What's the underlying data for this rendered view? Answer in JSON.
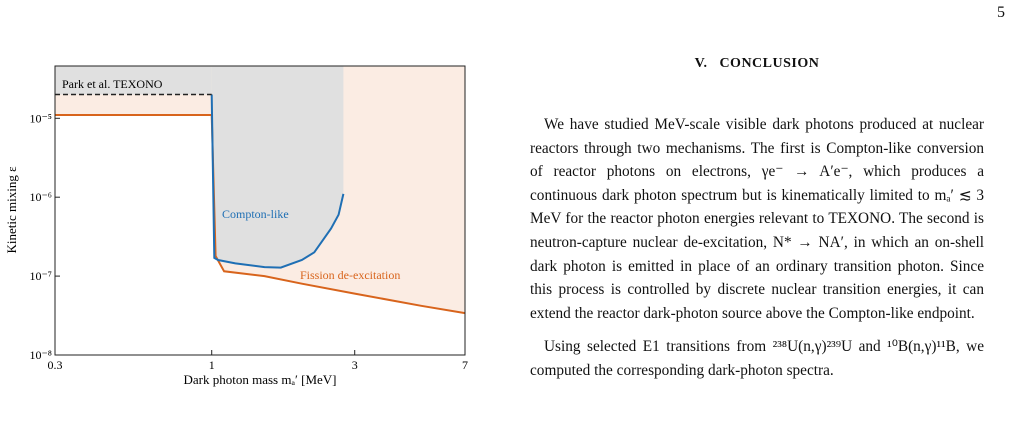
{
  "page_number": "5",
  "chart_data": {
    "type": "line",
    "xlabel": "Dark photon mass mₐ′ [MeV]",
    "ylabel": "Kinetic mixing ε",
    "log_x": true,
    "log_y": true,
    "xlim": [
      0.3,
      7
    ],
    "xticks": [
      0.3,
      1,
      3,
      7
    ],
    "ylim": [
      1e-08,
      4.6e-05
    ],
    "yticks": [
      {
        "value": 1e-08,
        "label": "10⁻⁸"
      },
      {
        "value": 1e-07,
        "label": "10⁻⁷"
      },
      {
        "value": 1e-06,
        "label": "10⁻⁶"
      },
      {
        "value": 1e-05,
        "label": "10⁻⁵"
      }
    ],
    "series": [
      {
        "name": "Fission de-excitation",
        "color": "#d8641c",
        "fill": "#fbece3",
        "x": [
          0.3,
          1.0,
          1.03,
          1.1,
          1.5,
          2,
          3,
          5,
          7
        ],
        "values": [
          1.1e-05,
          1.1e-05,
          1.8e-07,
          1.15e-07,
          1e-07,
          8e-08,
          6e-08,
          4.2e-08,
          3.4e-08
        ]
      },
      {
        "name": "Compton-like",
        "color": "#1f6fb4",
        "fill": "#e0e0e0",
        "x": [
          1.0,
          1.02,
          1.05,
          1.2,
          1.5,
          1.7,
          2.0,
          2.2,
          2.5,
          2.65,
          2.75
        ],
        "values": [
          2e-05,
          1.7e-07,
          1.6e-07,
          1.45e-07,
          1.3e-07,
          1.28e-07,
          1.6e-07,
          2e-07,
          4e-07,
          6e-07,
          1.1e-06
        ]
      },
      {
        "name": "Park et al. TEXONO",
        "color": "#222222",
        "fill": "#e0e0e0",
        "dashed": true,
        "x": [
          0.3,
          1.0
        ],
        "values": [
          2e-05,
          2e-05
        ]
      }
    ]
  },
  "section": {
    "heading": "V.   CONCLUSION",
    "paragraphs": [
      "We have studied MeV-scale visible dark photons produced at nuclear reactors through two mechanisms. The first is Compton-like conversion of reactor photons on electrons, γe⁻ → A′e⁻, which produces a continuous dark photon spectrum but is kinematically limited to mₐ′ ≲ 3 MeV for the reactor photon energies relevant to TEXONO. The second is neutron-capture nuclear de-excitation, N* → NA′, in which an on-shell dark photon is emitted in place of an ordinary transition photon. Since this process is controlled by discrete nuclear transition energies, it can extend the reactor dark-photon source above the Compton-like endpoint.",
      "Using selected E1 transitions from ²³⁸U(n,γ)²³⁹U and ¹⁰B(n,γ)¹¹B, we computed the corresponding dark-photon spectra."
    ]
  }
}
